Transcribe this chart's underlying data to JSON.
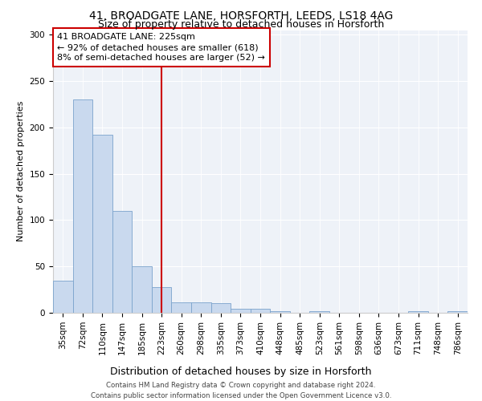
{
  "title1": "41, BROADGATE LANE, HORSFORTH, LEEDS, LS18 4AG",
  "title2": "Size of property relative to detached houses in Horsforth",
  "xlabel": "Distribution of detached houses by size in Horsforth",
  "ylabel": "Number of detached properties",
  "bar_values": [
    35,
    230,
    192,
    110,
    50,
    28,
    11,
    11,
    10,
    4,
    4,
    2,
    0,
    2,
    0,
    0,
    0,
    0,
    2,
    0,
    2
  ],
  "bin_labels": [
    "35sqm",
    "72sqm",
    "110sqm",
    "147sqm",
    "185sqm",
    "223sqm",
    "260sqm",
    "298sqm",
    "335sqm",
    "373sqm",
    "410sqm",
    "448sqm",
    "485sqm",
    "523sqm",
    "561sqm",
    "598sqm",
    "636sqm",
    "673sqm",
    "711sqm",
    "748sqm",
    "786sqm"
  ],
  "bar_color": "#c9d9ee",
  "bar_edge_color": "#7ba3cc",
  "vline_x_index": 5,
  "vline_color": "#cc0000",
  "annotation_line1": "41 BROADGATE LANE: 225sqm",
  "annotation_line2": "← 92% of detached houses are smaller (618)",
  "annotation_line3": "8% of semi-detached houses are larger (52) →",
  "annotation_box_color": "#ffffff",
  "annotation_box_edge": "#cc0000",
  "yticks": [
    0,
    50,
    100,
    150,
    200,
    250,
    300
  ],
  "ylim": [
    0,
    305
  ],
  "footer1": "Contains HM Land Registry data © Crown copyright and database right 2024.",
  "footer2": "Contains public sector information licensed under the Open Government Licence v3.0.",
  "bg_color": "#eef2f8",
  "title_fontsize": 10,
  "subtitle_fontsize": 9,
  "tick_fontsize": 7.5,
  "ylabel_fontsize": 8,
  "xlabel_fontsize": 9
}
